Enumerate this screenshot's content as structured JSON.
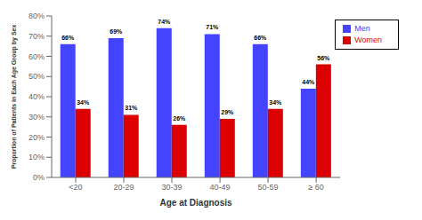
{
  "chart_data": {
    "type": "bar",
    "xlabel": "Age at Diagnosis",
    "ylabel": "Proportion of Patients in  Each Age Group by Sex",
    "categories": [
      "<20",
      "20-29",
      "30-39",
      "40-49",
      "50-59",
      "≥ 60"
    ],
    "series": [
      {
        "name": "Men",
        "color": "#4444FF",
        "values": [
          66,
          69,
          74,
          71,
          66,
          44
        ],
        "value_labels": [
          "66%",
          "69%",
          "74%",
          "71%",
          "66%",
          "44%"
        ]
      },
      {
        "name": "Women",
        "color": "#DD0000",
        "values": [
          34,
          31,
          26,
          29,
          34,
          56
        ],
        "value_labels": [
          "34%",
          "31%",
          "26%",
          "29%",
          "34%",
          "56%"
        ]
      }
    ],
    "ylim": [
      0,
      80
    ],
    "yticks": [
      {
        "value": 0,
        "label": "0%"
      },
      {
        "value": 10,
        "label": "10%"
      },
      {
        "value": 20,
        "label": "20%"
      },
      {
        "value": 30,
        "label": "30%"
      },
      {
        "value": 40,
        "label": "40%"
      },
      {
        "value": 50,
        "label": "50%"
      },
      {
        "value": 60,
        "label": "60%"
      },
      {
        "value": 70,
        "label": "70%"
      },
      {
        "value": 80,
        "label": "80%"
      }
    ],
    "grid": false,
    "legend": "upper right",
    "data_labels": true
  }
}
